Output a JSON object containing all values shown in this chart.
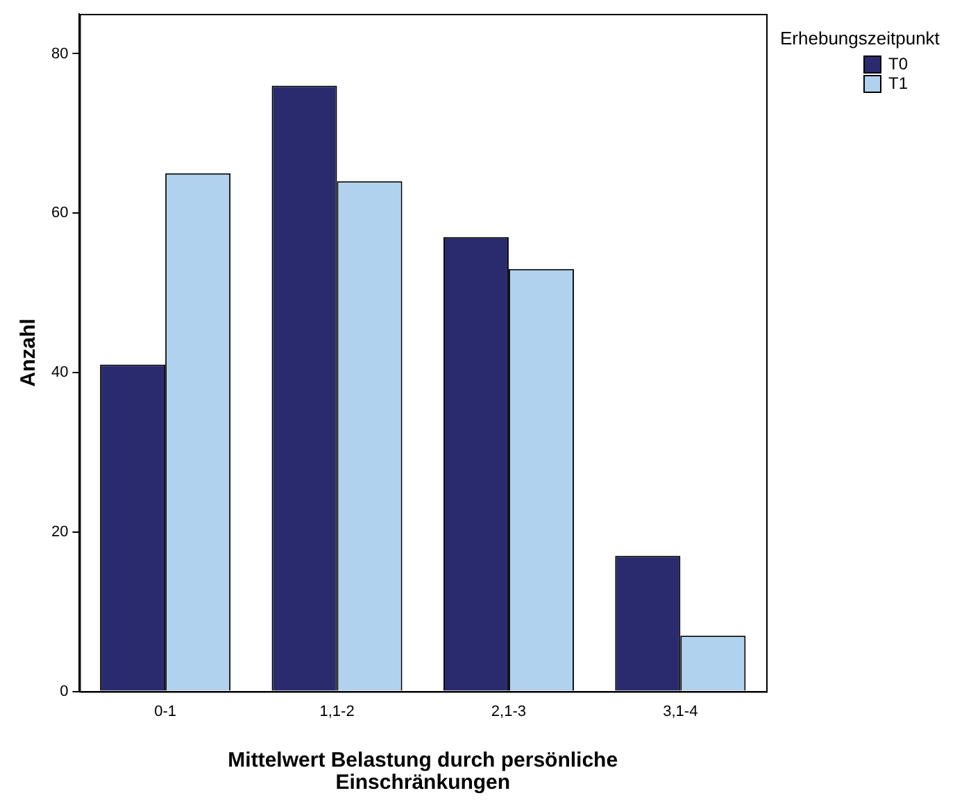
{
  "chart_data": {
    "type": "bar",
    "xlabel": "Mittelwert Belastung durch persönliche Einschränkungen",
    "ylabel": "Anzahl",
    "legend_title": "Erhebungszeitpunkt",
    "categories": [
      "0-1",
      "1,1-2",
      "2,1-3",
      "3,1-4"
    ],
    "series": [
      {
        "name": "T0",
        "color": "#2a2b6e",
        "values": [
          41,
          76,
          57,
          17
        ]
      },
      {
        "name": "T1",
        "color": "#b0d2ee",
        "values": [
          65,
          64,
          53,
          7
        ]
      }
    ],
    "ylim": [
      0,
      85
    ],
    "yticks": [
      0,
      20,
      40,
      60,
      80
    ],
    "grid": false,
    "legend": "top right"
  }
}
